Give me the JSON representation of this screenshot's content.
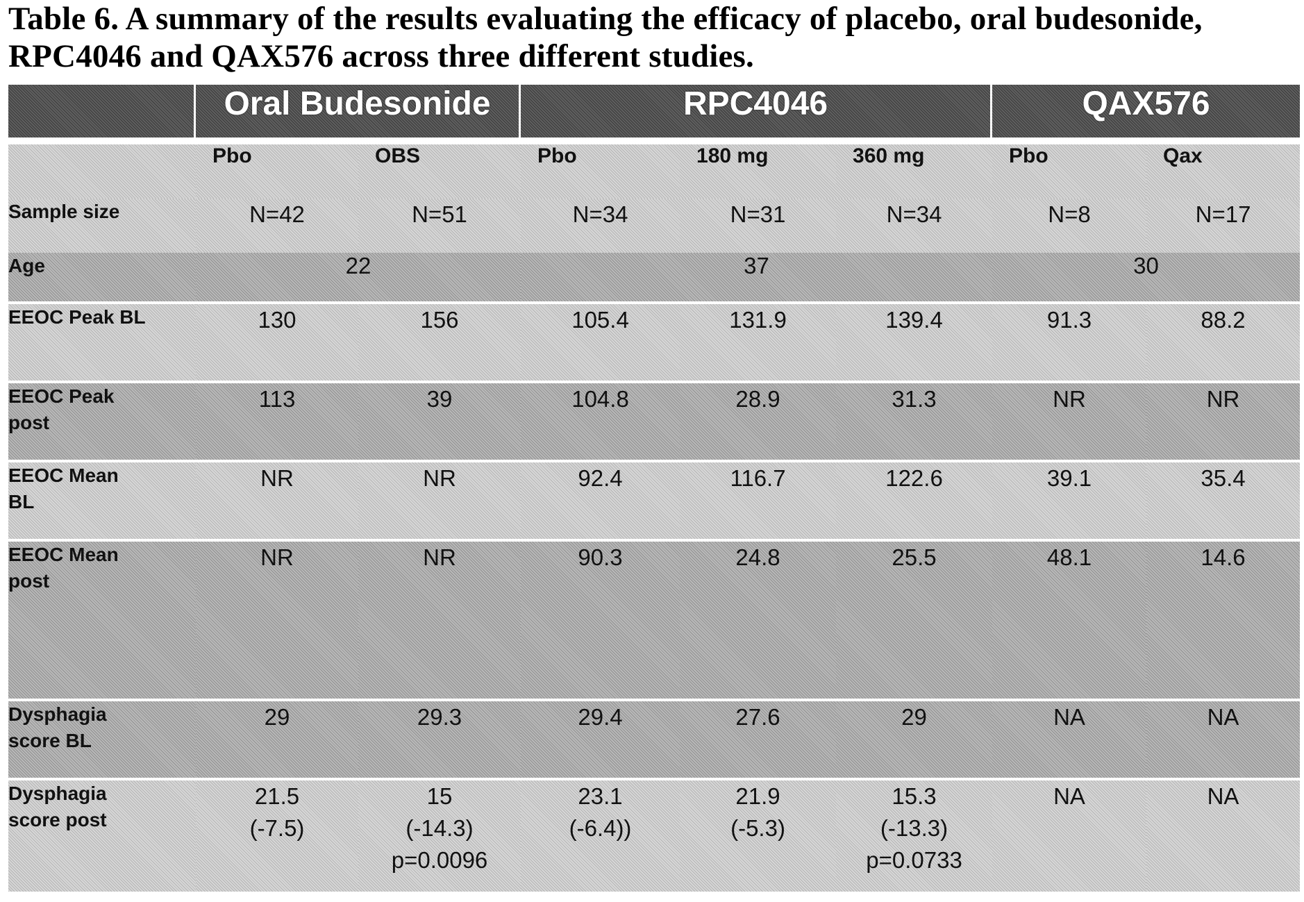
{
  "caption": {
    "line1": "Table 6.  A summary of the results evaluating the efficacy of placebo, oral budesonide,",
    "line2": "RPC4046 and QAX576 across three different studies."
  },
  "groups": {
    "oral_budesonide": "Oral Budesonide",
    "rpc4046": "RPC4046",
    "qax576": "QAX576"
  },
  "subheaders": [
    "Pbo",
    "OBS",
    "Pbo",
    "180 mg",
    "360 mg",
    "Pbo",
    "Qax"
  ],
  "rows": {
    "sample_size": {
      "label": "Sample size",
      "values": [
        "N=42",
        "N=51",
        "N=34",
        "N=31",
        "N=34",
        "N=8",
        "N=17"
      ]
    },
    "age": {
      "label": "Age",
      "values": [
        "22",
        "37",
        "30"
      ]
    },
    "eeoc_peak_bl": {
      "label": "EEOC Peak BL",
      "values": [
        "130",
        "156",
        "105.4",
        "131.9",
        "139.4",
        "91.3",
        "88.2"
      ]
    },
    "eeoc_peak_post": {
      "label_line1": "EEOC Peak",
      "label_line2": "post",
      "values": [
        "113",
        "39",
        "104.8",
        "28.9",
        "31.3",
        "NR",
        "NR"
      ]
    },
    "eeoc_mean_bl": {
      "label_line1": "EEOC Mean",
      "label_line2": "BL",
      "values": [
        "NR",
        "NR",
        "92.4",
        "116.7",
        "122.6",
        "39.1",
        "35.4"
      ]
    },
    "eeoc_mean_post": {
      "label_line1": "EEOC Mean",
      "label_line2": "post",
      "values": [
        "NR",
        "NR",
        "90.3",
        "24.8",
        "25.5",
        "48.1",
        "14.6"
      ]
    },
    "dysphagia_bl": {
      "label_line1": "Dysphagia",
      "label_line2": "score BL",
      "values": [
        "29",
        "29.3",
        "29.4",
        "27.6",
        "29",
        "NA",
        "NA"
      ]
    },
    "dysphagia_post": {
      "label_line1": "Dysphagia",
      "label_line2": "score post",
      "cells": [
        {
          "value": "21.5",
          "change": "(-7.5)",
          "p": ""
        },
        {
          "value": "15",
          "change": "(-14.3)",
          "p": "p=0.0096"
        },
        {
          "value": "23.1",
          "change": "(-6.4))",
          "p": ""
        },
        {
          "value": "21.9",
          "change": "(-5.3)",
          "p": ""
        },
        {
          "value": "15.3",
          "change": "(-13.3)",
          "p": "p=0.0733"
        },
        {
          "value": "NA",
          "change": "",
          "p": ""
        },
        {
          "value": "NA",
          "change": "",
          "p": ""
        }
      ]
    }
  }
}
